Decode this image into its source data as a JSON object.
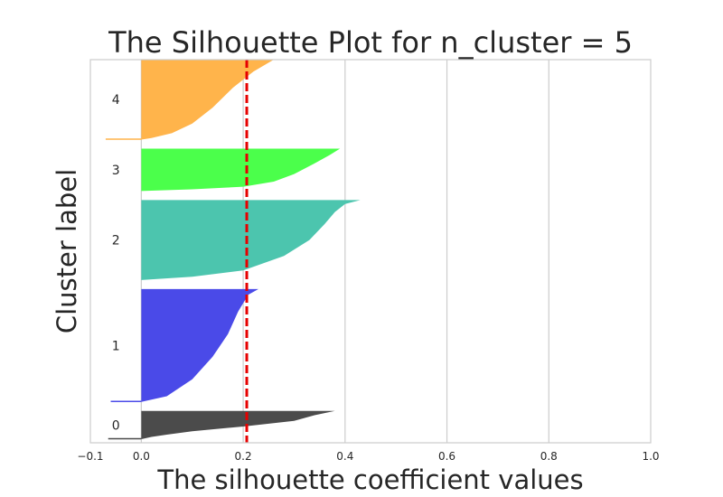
{
  "chart_data": {
    "type": "area",
    "title": "The Silhouette Plot for n_cluster = 5",
    "xlabel": "The silhouette coefficient values",
    "ylabel": "Cluster label",
    "xlim": [
      -0.1,
      1.0
    ],
    "xticks": [
      "−0.1",
      "0.0",
      "0.2",
      "0.4",
      "0.6",
      "0.8",
      "1.0"
    ],
    "xtick_values": [
      -0.1,
      0.0,
      0.2,
      0.4,
      0.6,
      0.8,
      1.0
    ],
    "grid": "vertical",
    "average_silhouette": 0.207,
    "clusters": [
      {
        "label": "0",
        "color": "#4b4b4b",
        "size": 60,
        "profile": [
          [
            0.0,
            0.0
          ],
          [
            0.02,
            0.08
          ],
          [
            0.05,
            0.16
          ],
          [
            0.1,
            0.28
          ],
          [
            0.2,
            0.45
          ],
          [
            0.3,
            0.65
          ],
          [
            0.34,
            0.85
          ],
          [
            0.38,
            1.0
          ]
        ],
        "min_value": -0.065
      },
      {
        "label": "1",
        "color": "#4a4ae8",
        "size": 240,
        "profile": [
          [
            0.0,
            0.0
          ],
          [
            0.05,
            0.05
          ],
          [
            0.1,
            0.2
          ],
          [
            0.14,
            0.4
          ],
          [
            0.17,
            0.6
          ],
          [
            0.19,
            0.8
          ],
          [
            0.21,
            0.95
          ],
          [
            0.23,
            1.0
          ]
        ],
        "min_value": -0.06
      },
      {
        "label": "2",
        "color": "#4cc5ae",
        "size": 170,
        "profile": [
          [
            0.0,
            0.0
          ],
          [
            0.1,
            0.04
          ],
          [
            0.2,
            0.12
          ],
          [
            0.28,
            0.3
          ],
          [
            0.33,
            0.5
          ],
          [
            0.36,
            0.7
          ],
          [
            0.38,
            0.85
          ],
          [
            0.4,
            0.95
          ],
          [
            0.43,
            1.0
          ]
        ],
        "min_value": 0.0
      },
      {
        "label": "3",
        "color": "#4bff4b",
        "size": 90,
        "profile": [
          [
            0.0,
            0.0
          ],
          [
            0.1,
            0.04
          ],
          [
            0.2,
            0.1
          ],
          [
            0.26,
            0.22
          ],
          [
            0.3,
            0.4
          ],
          [
            0.34,
            0.65
          ],
          [
            0.37,
            0.85
          ],
          [
            0.39,
            1.0
          ]
        ],
        "min_value": 0.0
      },
      {
        "label": "4",
        "color": "#ffb44b",
        "size": 170,
        "profile": [
          [
            0.0,
            0.0
          ],
          [
            0.02,
            0.02
          ],
          [
            0.06,
            0.08
          ],
          [
            0.1,
            0.2
          ],
          [
            0.14,
            0.4
          ],
          [
            0.18,
            0.65
          ],
          [
            0.22,
            0.85
          ],
          [
            0.26,
            1.0
          ]
        ],
        "min_value": -0.07
      }
    ]
  },
  "colors": {
    "average_line": "#e60000",
    "grid": "#cccccc",
    "spine": "#cccccc",
    "text": "#262626"
  }
}
